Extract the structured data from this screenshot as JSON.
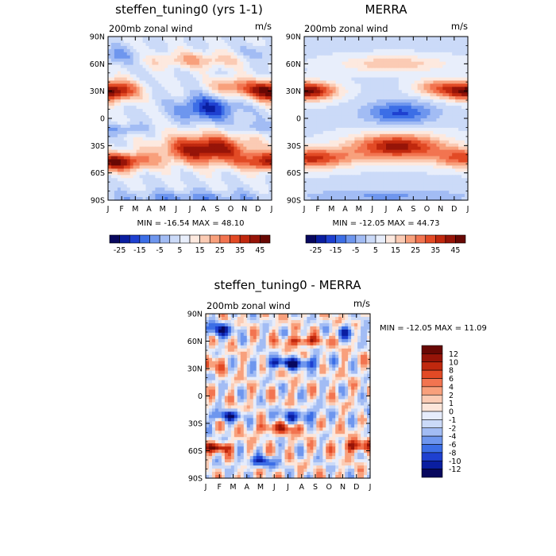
{
  "chart_data": [
    {
      "type": "heatmap",
      "title": "steffen_tuning0 (yrs 1-1)",
      "subtitle": "200mb zonal wind",
      "units": "m/s",
      "x_ticks": [
        "J",
        "F",
        "M",
        "A",
        "M",
        "J",
        "J",
        "A",
        "S",
        "O",
        "N",
        "D",
        "J"
      ],
      "y_ticks": [
        "90N",
        "60N",
        "30N",
        "0",
        "30S",
        "60S",
        "90S"
      ],
      "ylim": [
        -90,
        90
      ],
      "stats": "MIN = -16.54  MAX =  48.10",
      "min": -16.54,
      "max": 48.1,
      "colorbar_orientation": "horizontal",
      "colorbar_labels": [
        "-25",
        "-15",
        "-5",
        "5",
        "15",
        "25",
        "35",
        "45"
      ],
      "levels": [
        -25,
        -20,
        -15,
        -10,
        -5,
        0,
        5,
        10,
        15,
        20,
        25,
        30,
        35,
        40,
        45
      ]
    },
    {
      "type": "heatmap",
      "title": "MERRA",
      "subtitle": "200mb zonal wind",
      "units": "m/s",
      "x_ticks": [
        "J",
        "F",
        "M",
        "A",
        "M",
        "J",
        "J",
        "A",
        "S",
        "O",
        "N",
        "D",
        "J"
      ],
      "y_ticks": [
        "90N",
        "60N",
        "30N",
        "0",
        "30S",
        "60S",
        "90S"
      ],
      "ylim": [
        -90,
        90
      ],
      "stats": "MIN = -12.05  MAX =  44.73",
      "min": -12.05,
      "max": 44.73,
      "colorbar_orientation": "horizontal",
      "colorbar_labels": [
        "-25",
        "-15",
        "-5",
        "5",
        "15",
        "25",
        "35",
        "45"
      ],
      "levels": [
        -25,
        -20,
        -15,
        -10,
        -5,
        0,
        5,
        10,
        15,
        20,
        25,
        30,
        35,
        40,
        45
      ]
    },
    {
      "type": "heatmap",
      "title": "steffen_tuning0 - MERRA",
      "subtitle": "200mb zonal wind",
      "units": "m/s",
      "x_ticks": [
        "J",
        "F",
        "M",
        "A",
        "M",
        "J",
        "J",
        "A",
        "S",
        "O",
        "N",
        "D",
        "J"
      ],
      "y_ticks": [
        "90N",
        "60N",
        "30N",
        "0",
        "30S",
        "60S",
        "90S"
      ],
      "ylim": [
        -90,
        90
      ],
      "stats": "MIN = -12.05  MAX =  11.09",
      "min": -12.05,
      "max": 11.09,
      "colorbar_orientation": "vertical",
      "colorbar_labels": [
        "12",
        "10",
        "8",
        "6",
        "4",
        "2",
        "1",
        "0",
        "-1",
        "-2",
        "-4",
        "-6",
        "-8",
        "-10",
        "-12"
      ],
      "levels": [
        -12,
        -10,
        -8,
        -6,
        -4,
        -2,
        -1,
        0,
        1,
        2,
        4,
        6,
        8,
        10,
        12
      ]
    }
  ],
  "colors": {
    "palette16": [
      "#08085e",
      "#0a1ea0",
      "#1e40d0",
      "#3c6ee6",
      "#6e96ee",
      "#a2bcf4",
      "#cbdaf8",
      "#e8eefb",
      "#fde9df",
      "#fbcbb4",
      "#f8a07c",
      "#f27450",
      "#e24a25",
      "#c0280e",
      "#961408",
      "#680804"
    ],
    "palette16_diff": [
      "#08085e",
      "#0a1ea0",
      "#1e40d0",
      "#3c6ee6",
      "#6e96ee",
      "#a2bcf4",
      "#cbdaf8",
      "#e6ecfb",
      "#fde6da",
      "#fbcbb4",
      "#f8a07c",
      "#f27450",
      "#e24a25",
      "#c0280e",
      "#961408",
      "#680804"
    ]
  }
}
